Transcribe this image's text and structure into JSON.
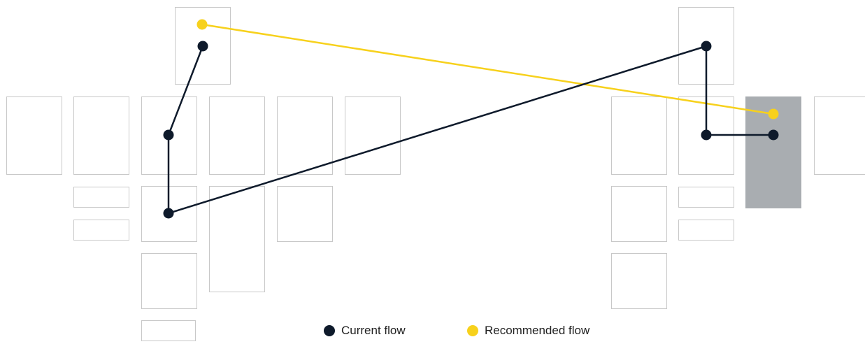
{
  "colors": {
    "current": "#0e1a2b",
    "recommended": "#f7d11c",
    "box_stroke": "#c8c8c8",
    "highlight_fill": "#a9adb1"
  },
  "legend": {
    "current_label": "Current flow",
    "recommended_label": "Recommended flow"
  }
}
